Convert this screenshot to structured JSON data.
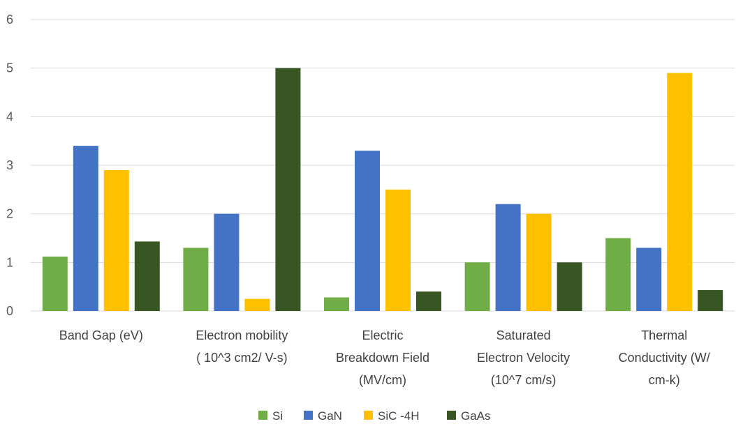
{
  "chart_data": {
    "type": "bar",
    "title": "",
    "xlabel": "",
    "ylabel": "",
    "ylim": [
      0,
      6
    ],
    "yticks": [
      "0",
      "1",
      "2",
      "3",
      "4",
      "5",
      "6"
    ],
    "grid": true,
    "legend_position": "bottom",
    "categories": [
      [
        "Band Gap (eV)"
      ],
      [
        "Electron mobility",
        "( 10^3 cm2/ V-s)"
      ],
      [
        "Electric",
        "Breakdown Field",
        "(MV/cm)"
      ],
      [
        "Saturated",
        "Electron Velocity",
        "(10^7 cm/s)"
      ],
      [
        "Thermal",
        "Conductivity (W/",
        "cm-k)"
      ]
    ],
    "series": [
      {
        "name": "Si",
        "color": "#70ad47",
        "values": [
          1.12,
          1.3,
          0.28,
          1.0,
          1.5
        ]
      },
      {
        "name": "GaN",
        "color": "#4472c4",
        "values": [
          3.4,
          2.0,
          3.3,
          2.2,
          1.3
        ]
      },
      {
        "name": "SiC -4H",
        "color": "#ffc000",
        "values": [
          2.9,
          0.25,
          2.5,
          2.0,
          4.9
        ]
      },
      {
        "name": "GaAs",
        "color": "#375623",
        "values": [
          1.43,
          5.0,
          0.4,
          1.0,
          0.43
        ]
      }
    ]
  }
}
